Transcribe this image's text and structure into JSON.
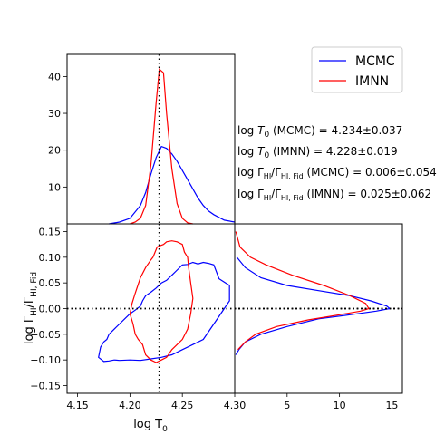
{
  "chart_data": [
    {
      "panel": "top",
      "type": "line",
      "xlim": [
        4.14,
        4.3
      ],
      "ylim": [
        0,
        46
      ],
      "yticks": [
        10,
        20,
        30,
        40
      ],
      "xlabel": "",
      "ylabel": "",
      "reference_line": {
        "x": 4.228
      },
      "series": [
        {
          "name": "MCMC",
          "color": "#0000ff",
          "x": [
            4.18,
            4.19,
            4.2,
            4.21,
            4.215,
            4.22,
            4.225,
            4.23,
            4.235,
            4.24,
            4.245,
            4.25,
            4.255,
            4.26,
            4.265,
            4.27,
            4.275,
            4.28,
            4.29,
            4.3
          ],
          "y": [
            0.0,
            0.5,
            1.5,
            5.0,
            8.5,
            13.5,
            18.0,
            21.0,
            20.5,
            19.0,
            17.0,
            14.5,
            12.0,
            9.5,
            7.0,
            5.0,
            3.5,
            2.5,
            1.0,
            0.5
          ]
        },
        {
          "name": "IMNN",
          "color": "#ff0000",
          "x": [
            4.2,
            4.205,
            4.21,
            4.215,
            4.22,
            4.225,
            4.228,
            4.232,
            4.235,
            4.24,
            4.245,
            4.25,
            4.255,
            4.26
          ],
          "y": [
            0.0,
            0.5,
            1.5,
            5.0,
            16.0,
            33.0,
            42.0,
            41.0,
            30.0,
            15.0,
            5.5,
            1.5,
            0.3,
            0.0
          ]
        }
      ]
    },
    {
      "panel": "main",
      "type": "line",
      "xlim": [
        4.14,
        4.3
      ],
      "ylim": [
        -0.165,
        0.165
      ],
      "xticks": [
        4.15,
        4.2,
        4.25,
        4.3
      ],
      "xtick_labels": [
        "4.15",
        "4.20",
        "4.25",
        "4.30"
      ],
      "yticks": [
        -0.15,
        -0.1,
        -0.05,
        0.0,
        0.05,
        0.1,
        0.15
      ],
      "ytick_labels": [
        "−0.15",
        "−0.10",
        "−0.05",
        "0.00",
        "0.05",
        "0.10",
        "0.15"
      ],
      "xlabel_base": "log T",
      "xlabel_sub": "0",
      "ylabel_base": "log Γ",
      "ylabel_sub1": "HI",
      "ylabel_mid": "/Γ",
      "ylabel_sub2": "HI, Fid",
      "reference_lines": {
        "x": 4.228,
        "y": 0.0
      },
      "series": [
        {
          "name": "MCMC",
          "color": "#0000ff",
          "x": [
            4.17,
            4.175,
            4.18,
            4.185,
            4.19,
            4.2,
            4.21,
            4.22,
            4.23,
            4.24,
            4.25,
            4.26,
            4.27,
            4.275,
            4.28,
            4.285,
            4.29,
            4.295,
            4.295,
            4.285,
            4.28,
            4.275,
            4.27,
            4.265,
            4.26,
            4.255,
            4.25,
            4.245,
            4.24,
            4.235,
            4.23,
            4.225,
            4.22,
            4.215,
            4.212,
            4.21,
            4.205,
            4.2,
            4.195,
            4.19,
            4.185,
            4.18,
            4.178,
            4.175,
            4.172,
            4.17
          ],
          "y": [
            -0.095,
            -0.103,
            -0.102,
            -0.1,
            -0.101,
            -0.1,
            -0.101,
            -0.098,
            -0.095,
            -0.09,
            -0.08,
            -0.07,
            -0.06,
            -0.045,
            -0.03,
            -0.015,
            0.0,
            0.015,
            0.045,
            0.058,
            0.085,
            0.088,
            0.09,
            0.087,
            0.09,
            0.086,
            0.085,
            0.075,
            0.065,
            0.055,
            0.05,
            0.04,
            0.032,
            0.025,
            0.015,
            0.005,
            -0.003,
            -0.01,
            -0.02,
            -0.03,
            -0.04,
            -0.05,
            -0.06,
            -0.065,
            -0.075,
            -0.095
          ]
        },
        {
          "name": "IMNN",
          "color": "#ff0000",
          "x": [
            4.225,
            4.23,
            4.235,
            4.24,
            4.245,
            4.25,
            4.255,
            4.258,
            4.26,
            4.258,
            4.256,
            4.255,
            4.252,
            4.25,
            4.245,
            4.24,
            4.235,
            4.232,
            4.228,
            4.226,
            4.222,
            4.22,
            4.215,
            4.21,
            4.205,
            4.202,
            4.2,
            4.203,
            4.205,
            4.208,
            4.212,
            4.215,
            4.22,
            4.225
          ],
          "y": [
            -0.105,
            -0.1,
            -0.095,
            -0.08,
            -0.07,
            -0.06,
            -0.04,
            -0.01,
            0.02,
            0.05,
            0.08,
            0.1,
            0.11,
            0.125,
            0.13,
            0.132,
            0.13,
            0.125,
            0.122,
            0.12,
            0.1,
            0.095,
            0.08,
            0.06,
            0.03,
            0.01,
            -0.01,
            -0.03,
            -0.05,
            -0.06,
            -0.07,
            -0.09,
            -0.1,
            -0.105
          ]
        }
      ]
    },
    {
      "panel": "right",
      "type": "line",
      "xlim": [
        0,
        16
      ],
      "ylim": [
        -0.165,
        0.165
      ],
      "xticks": [
        5,
        10,
        15
      ],
      "xtick_labels": [
        "5",
        "10",
        "15"
      ],
      "reference_line": {
        "y": 0.0
      },
      "series": [
        {
          "name": "MCMC",
          "color": "#0000ff",
          "x": [
            0.2,
            1.0,
            2.5,
            5.0,
            8.0,
            11.0,
            13.0,
            14.5,
            14.8,
            13.5,
            11.0,
            8.0,
            5.0,
            2.5,
            1.0,
            0.4,
            0.1
          ],
          "y": [
            0.1,
            0.08,
            0.06,
            0.045,
            0.035,
            0.025,
            0.015,
            0.005,
            0.0,
            -0.005,
            -0.012,
            -0.02,
            -0.035,
            -0.05,
            -0.065,
            -0.08,
            -0.09
          ]
        },
        {
          "name": "IMNN",
          "color": "#ff0000",
          "x": [
            0.1,
            0.5,
            1.5,
            3.0,
            5.5,
            8.5,
            11.0,
            12.5,
            12.8,
            12.0,
            10.0,
            7.0,
            4.0,
            2.0,
            1.0,
            0.3
          ],
          "y": [
            0.15,
            0.12,
            0.1,
            0.085,
            0.065,
            0.045,
            0.025,
            0.01,
            0.0,
            -0.005,
            -0.012,
            -0.022,
            -0.035,
            -0.05,
            -0.065,
            -0.08
          ]
        }
      ]
    }
  ],
  "legend": {
    "entries": [
      {
        "label": "MCMC",
        "color": "#0000ff"
      },
      {
        "label": "IMNN",
        "color": "#ff0000"
      }
    ]
  },
  "annotations": {
    "line1": {
      "pre": "log ",
      "var": "T",
      "sub": "0",
      "post": " (MCMC) = 4.234±0.037"
    },
    "line2": {
      "pre": "log ",
      "var": "T",
      "sub": "0",
      "post": " (IMNN) = 4.228±0.019"
    },
    "line3": {
      "pre": "log Γ",
      "sub1": "HI",
      "mid": "/Γ",
      "sub2": "HI, Fid",
      "post": " (MCMC) = 0.006±0.054"
    },
    "line4": {
      "pre": "log Γ",
      "sub1": "HI",
      "mid": "/Γ",
      "sub2": "HI, Fid",
      "post": " (IMNN) = 0.025±0.062"
    }
  }
}
